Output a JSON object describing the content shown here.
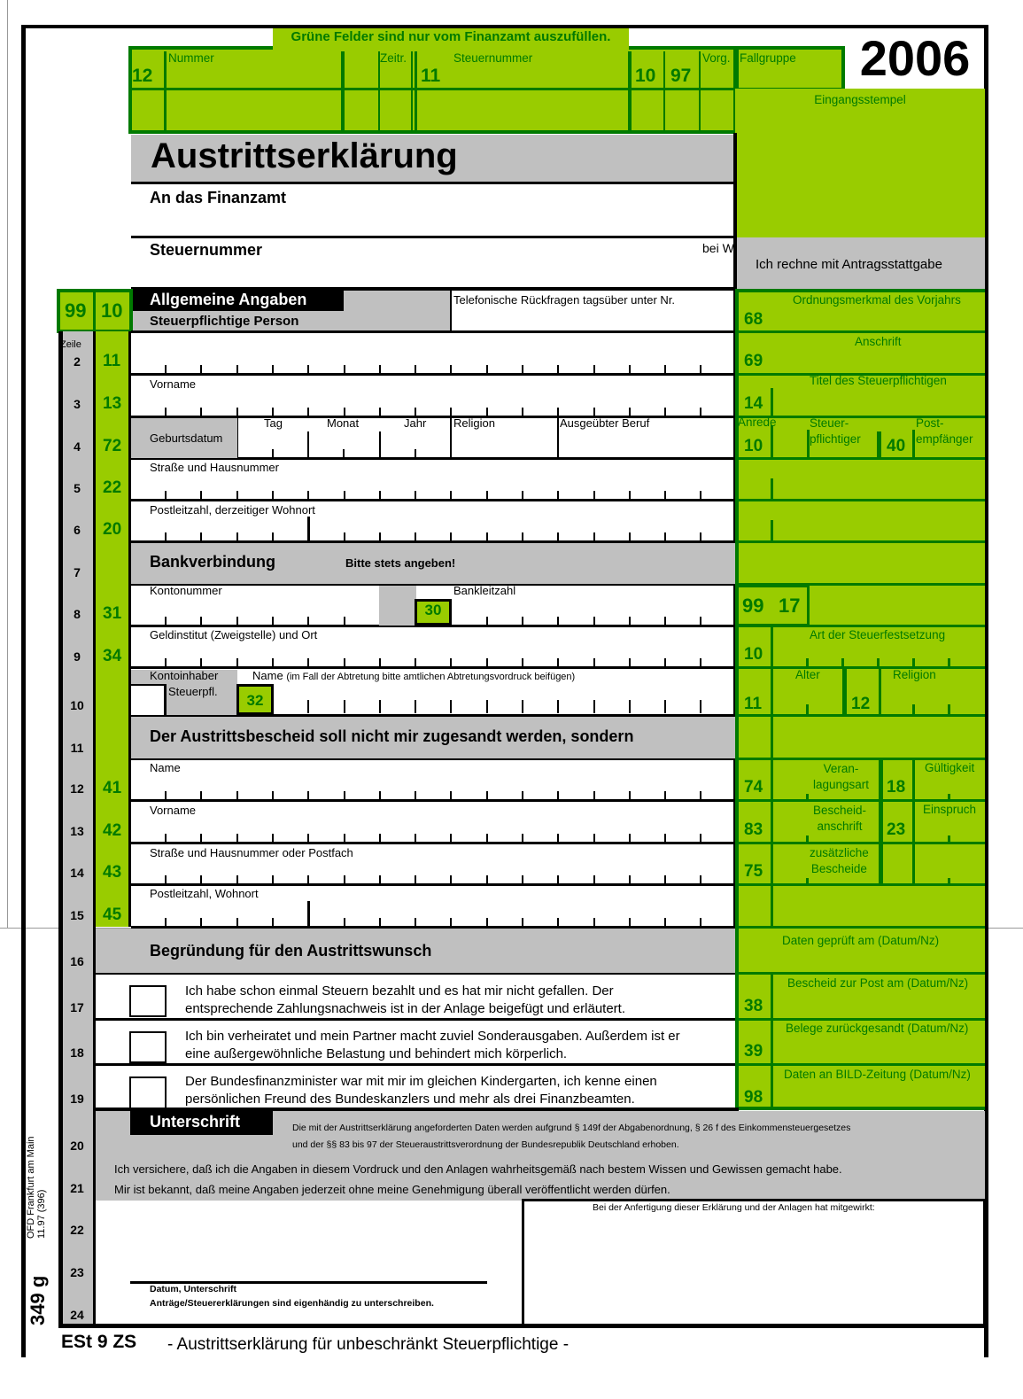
{
  "banner": "Grüne Felder sind nur vom Finanzamt auszufüllen.",
  "year": "2006",
  "header": {
    "c12": "12",
    "nummer": "Nummer",
    "zeitr": "Zeitr.",
    "c11": "11",
    "steuernummer": "Steuernummer",
    "c10": "10",
    "c97": "97",
    "vorg": "Vorg.",
    "fallgruppe": "Fallgruppe",
    "eingangsstempel": "Eingangsstempel"
  },
  "title": "Austrittserklärung",
  "an_finanzamt": "An das Finanzamt",
  "steuernummer": "Steuernummer",
  "bei_w": "bei W",
  "antrag": "Ich rechne mit Antragsstattgabe",
  "section1": {
    "c99": "99",
    "c10": "10",
    "title": "Allgemeine Angaben",
    "sub": "Steuerpflichtige Person",
    "telefon": "Telefonische Rückfragen tagsüber unter Nr."
  },
  "zeile": "Zeile",
  "row_numbers": [
    "2",
    "3",
    "4",
    "5",
    "6",
    "7",
    "8",
    "9",
    "10",
    "11",
    "12",
    "13",
    "14",
    "15",
    "16",
    "17",
    "18",
    "19",
    "20",
    "21",
    "22",
    "23",
    "24"
  ],
  "left_codes": {
    "r2": "11",
    "r3": "13",
    "r4": "72",
    "r5": "22",
    "r6": "20",
    "r8": "31",
    "r9": "34",
    "r12": "41",
    "r13": "42",
    "r14": "43",
    "r15": "45"
  },
  "fields": {
    "vorname": "Vorname",
    "geburtsdatum": "Geburtsdatum",
    "tag": "Tag",
    "monat": "Monat",
    "jahr": "Jahr",
    "religion": "Religion",
    "beruf": "Ausgeübter Beruf",
    "strasse": "Straße und Hausnummer",
    "plz": "Postleitzahl, derzeitiger Wohnort"
  },
  "bank": {
    "title": "Bankverbindung",
    "note": "Bitte stets angeben!",
    "konto": "Kontonummer",
    "blz": "Bankleitzahl",
    "c30": "30",
    "institut": "Geldinstitut (Zweigstelle) und Ort",
    "inhaber": "Kontoinhaber",
    "steuerpfl": "Steuerpfl.",
    "c32": "32",
    "name": "Name",
    "name_note": "(im Fall der Abtretung bitte amtlichen Abtretungsvordruck beifügen)"
  },
  "recipient": {
    "title": "Der Austrittsbescheid soll nicht mir zugesandt werden, sondern",
    "name": "Name",
    "vorname": "Vorname",
    "strasse": "Straße und Hausnummer oder Postfach",
    "plz": "Postleitzahl, Wohnort"
  },
  "reason": {
    "title": "Begründung für den Austrittswunsch",
    "options": [
      {
        "line1": "Ich habe schon einmal Steuern bezahlt und es hat mir nicht gefallen. Der",
        "line2": "entsprechende Zahlungsnachweis ist in der Anlage beigefügt und erläutert.",
        "checked": false
      },
      {
        "line1": "Ich bin verheiratet und mein Partner macht zuviel Sonderausgaben. Außerdem ist er",
        "line2": "eine außergewöhnliche Belastung und behindert mich körperlich.",
        "checked": false
      },
      {
        "line1": "Der Bundesfinanzminister war mit mir im gleichen Kindergarten, ich kenne einen",
        "line2": "persönlichen Freund des Bundeskanzlers und mehr als drei Finanzbeamten.",
        "checked": false
      }
    ]
  },
  "right": {
    "ordnung": "Ordnungsmerkmal des Vorjahrs",
    "c68": "68",
    "anschrift": "Anschrift",
    "c69": "69",
    "titel": "Titel des Steuerpflichtigen",
    "c14": "14",
    "anrede": "Anrede",
    "c10a": "10",
    "steuerpfl1": "Steuer-",
    "steuerpfl2": "pflichtiger",
    "c40": "40",
    "post1": "Post-",
    "post2": "empfänger",
    "c99": "99",
    "c17": "17",
    "art": "Art der Steuerfestsetzung",
    "c10b": "10",
    "c11": "11",
    "alter": "Alter",
    "c12": "12",
    "religion": "Religion",
    "c74": "74",
    "veran1": "Veran-",
    "veran2": "lagungsart",
    "c18": "18",
    "gueltig": "Gültigkeit",
    "c83": "83",
    "besch1": "Bescheid-",
    "besch2": "anschrift",
    "c23": "23",
    "einspruch": "Einspruch",
    "c75": "75",
    "zus1": "zusätzliche",
    "zus2": "Bescheide",
    "geprueft": "Daten geprüft am (Datum/Nz)",
    "post": "Bescheid zur Post am (Datum/Nz)",
    "c38": "38",
    "belege": "Belege zurückgesandt (Datum/Nz)",
    "c39": "39",
    "bild": "Daten an BILD-Zeitung (Datum/Nz)",
    "c98": "98"
  },
  "signature": {
    "title": "Unterschrift",
    "legal1": "Die mit der Austrittserklärung angeforderten Daten werden aufgrund § 149f der Abgabenordnung, § 26 f des Einkommensteuergesetzes",
    "legal2": "und der §§ 83 bis 97 der Steueraustrittsverordnung der Bundesrepublik Deutschland erhoben.",
    "assure": "Ich versichere, daß ich die Angaben in diesem Vordruck und den Anlagen wahrheitsgemäß nach bestem Wissen und Gewissen gemacht habe.",
    "known": "Mir ist bekannt, daß meine Angaben jederzeit ohne meine Genehmigung überall veröffentlicht werden dürfen.",
    "helper": "Bei der Anfertigung dieser Erklärung und der Anlagen hat mitgewirkt:",
    "date_sig": "Datum, Unterschrift",
    "own_hand": "Anträge/Steuererklärungen sind eigenhändig zu unterschreiben."
  },
  "margin": {
    "ofd": "OFD Frankfurt am Main",
    "date": "11.97 (396)",
    "form": "349 g"
  },
  "footer": {
    "code": "ESt 9 ZS",
    "title": "- Austrittserklärung für unbeschränkt Steuerpflichtige -"
  },
  "colors": {
    "green": "#99cc00",
    "dark_green": "#007a00",
    "gray": "#c0c0c0"
  }
}
